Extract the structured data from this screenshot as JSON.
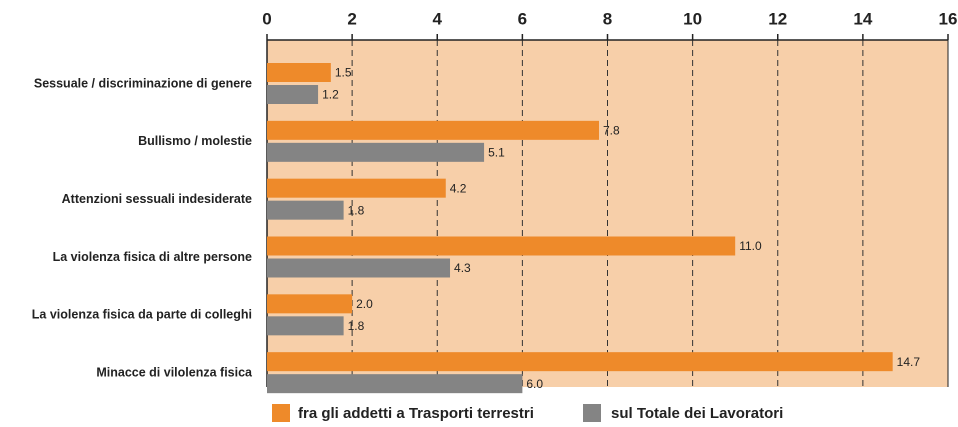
{
  "chart_data": {
    "type": "hbar",
    "categories": [
      "Sessuale / discriminazione di genere",
      "Bullismo / molestie",
      "Attenzioni sessuali indesiderate",
      "La violenza fisica di altre persone",
      "La violenza fisica da parte di colleghi",
      "Minacce di vilolenza fisica"
    ],
    "series": [
      {
        "name": "fra gli addetti a Trasporti terrestri",
        "color": "#ee8a2a",
        "values": [
          1.5,
          7.8,
          4.2,
          11.0,
          2.0,
          14.7
        ],
        "value_labels": [
          "1.5",
          "7.8",
          "4.2",
          "11.0",
          "2.0",
          "14.7"
        ]
      },
      {
        "name": "sul Totale dei Lavoratori",
        "color": "#848484",
        "values": [
          1.2,
          5.1,
          1.8,
          4.3,
          1.8,
          6.0
        ],
        "value_labels": [
          "1.2",
          "5.1",
          "1.8",
          "4.3",
          "1.8",
          "6.0"
        ]
      }
    ],
    "xlim": [
      0,
      16
    ],
    "xticks": [
      0,
      2,
      4,
      6,
      8,
      10,
      12,
      14,
      16
    ],
    "grid": true,
    "background": "#f7cfa9",
    "legend": "bottom"
  }
}
